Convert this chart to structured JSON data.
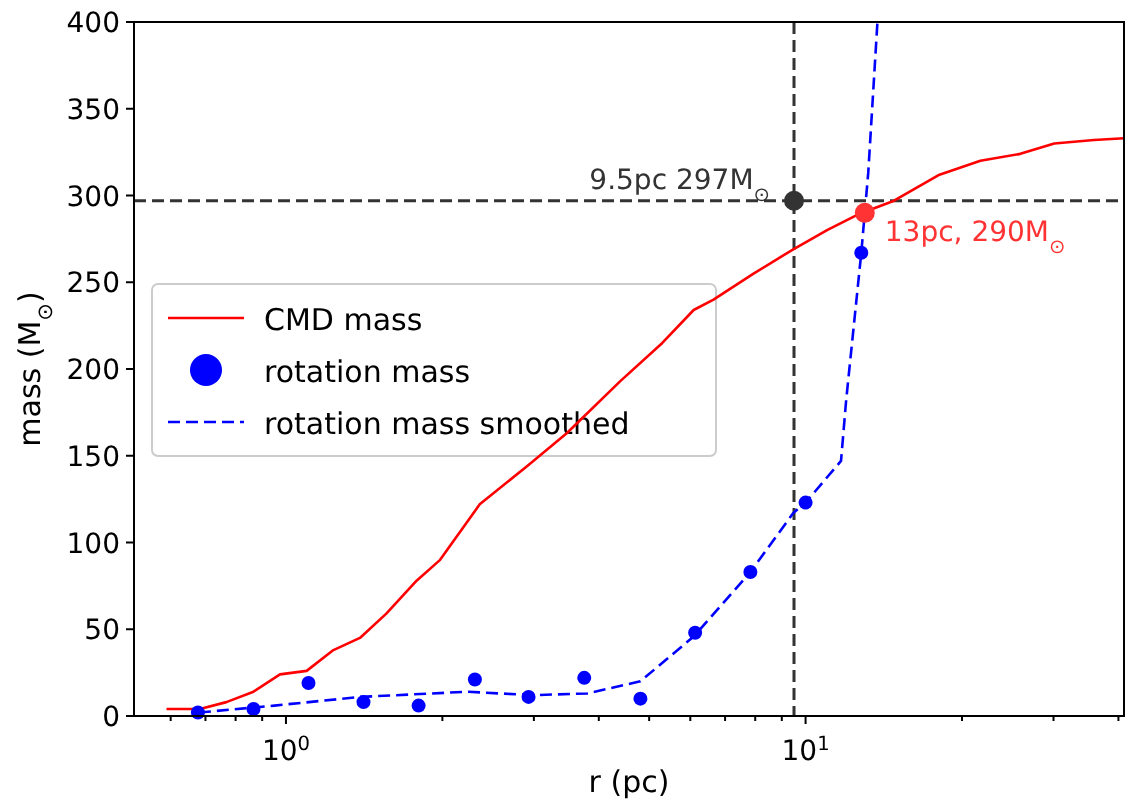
{
  "chart_data": {
    "type": "line",
    "xlabel": "r (pc)",
    "ylabel": "mass (M$_{⊙}$)",
    "log": "x",
    "grid": false,
    "legend": "left",
    "xlim": [
      0.51,
      41
    ],
    "ylim": [
      0,
      400
    ],
    "xticks": [
      {
        "value": 0.6,
        "label": null
      },
      {
        "value": 0.7,
        "label": null
      },
      {
        "value": 0.8,
        "label": null
      },
      {
        "value": 0.9,
        "label": null
      },
      {
        "value": 1,
        "label": "10$^{0}$"
      },
      {
        "value": 2,
        "label": null
      },
      {
        "value": 3,
        "label": null
      },
      {
        "value": 4,
        "label": null
      },
      {
        "value": 5,
        "label": null
      },
      {
        "value": 6,
        "label": null
      },
      {
        "value": 7,
        "label": null
      },
      {
        "value": 8,
        "label": null
      },
      {
        "value": 9,
        "label": null
      },
      {
        "value": 10,
        "label": "10$^{1}$"
      },
      {
        "value": 20,
        "label": null
      },
      {
        "value": 30,
        "label": null
      },
      {
        "value": 40,
        "label": null
      }
    ],
    "yticks": [
      0,
      50,
      100,
      150,
      200,
      250,
      300,
      350,
      400
    ],
    "ref_lines": [
      {
        "axis": "x",
        "value": 9.5,
        "color": "#333333",
        "line_style": "dashed"
      },
      {
        "axis": "y",
        "value": 297,
        "color": "#333333",
        "line_style": "dashed"
      }
    ],
    "annotations": [
      {
        "text": "9.5pc 297M$_{⊙}$",
        "x": 9.5,
        "y": 297
      },
      {
        "text": "13pc, 290M$_{⊙}$",
        "x": 13,
        "y": 290
      }
    ],
    "series": [
      {
        "name": "CMD mass",
        "color": "#ff0000",
        "line_style": "solid",
        "marker": "none",
        "x": [
          0.589,
          0.683,
          0.768,
          0.866,
          0.974,
          1.096,
          1.234,
          1.388,
          1.56,
          1.784,
          1.98,
          2.36,
          2.91,
          3.47,
          4.4,
          5.3,
          6.09,
          6.65,
          7.94,
          9.47,
          11.0,
          12.6,
          14.8,
          18.1,
          21.7,
          25.9,
          30.1,
          35.9,
          41
        ],
        "values": [
          4,
          4,
          8,
          14,
          24,
          26,
          38,
          45,
          59,
          78,
          90,
          122,
          144,
          163,
          193,
          215,
          234,
          240,
          255,
          269,
          280,
          289,
          297,
          312,
          320,
          324,
          330,
          332,
          333
        ]
      },
      {
        "name": "rotation mass",
        "type": "scatter",
        "color": "#0000ff",
        "marker": "circle",
        "x": [
          0.677,
          0.866,
          1.105,
          1.41,
          1.8,
          2.31,
          2.93,
          3.75,
          4.81,
          6.13,
          7.83,
          10.0,
          12.8
        ],
        "values": [
          2,
          4,
          19,
          8,
          6,
          21,
          11,
          22,
          10,
          48,
          83,
          123,
          267
        ]
      },
      {
        "name": "rotation mass smoothed",
        "color": "#0000ff",
        "line_style": "dashed",
        "marker": "none",
        "x": [
          0.68,
          0.95,
          1.39,
          2.24,
          2.98,
          3.8,
          4.81,
          6.1,
          7.83,
          9.47,
          10.0,
          11.7,
          11.97,
          12.8,
          13.2,
          13.75
        ],
        "values": [
          2,
          6,
          11,
          14,
          12,
          13,
          20,
          46,
          83,
          117,
          123,
          147,
          182,
          267,
          313,
          400
        ]
      },
      {
        "type": "scatter",
        "color": "#333333",
        "marker": "circle",
        "x": [
          9.5
        ],
        "values": [
          297
        ]
      },
      {
        "type": "scatter",
        "color": "#ff3333",
        "marker": "circle",
        "x": [
          13
        ],
        "values": [
          290
        ]
      }
    ]
  }
}
